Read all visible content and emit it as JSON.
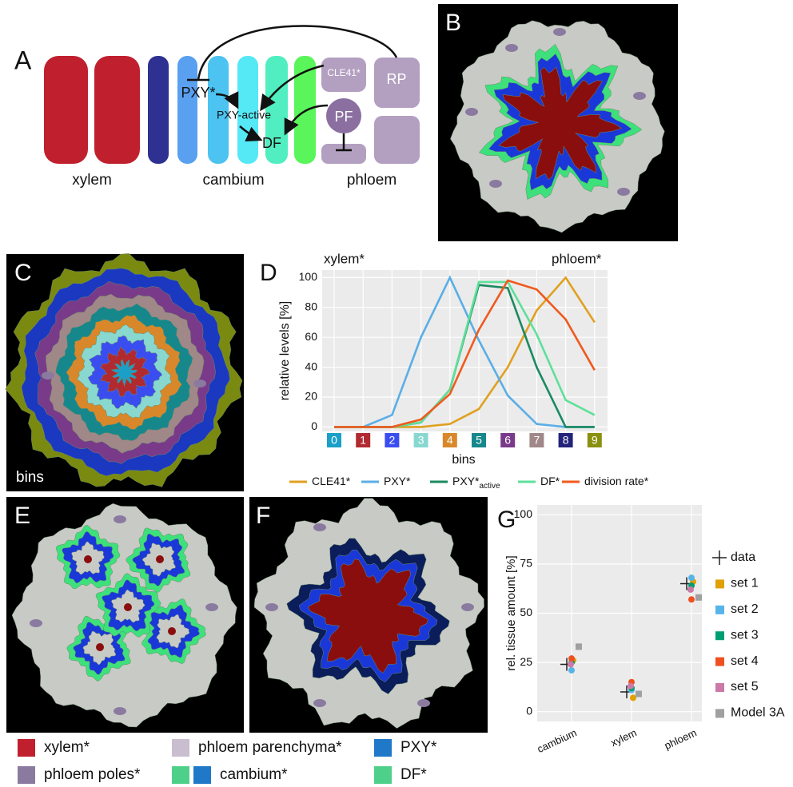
{
  "panel_labels": [
    "A",
    "B",
    "C",
    "D",
    "E",
    "F",
    "G"
  ],
  "panel_a": {
    "groups": [
      "xylem",
      "cambium",
      "phloem"
    ],
    "nodes": [
      "CLE41*",
      "RP",
      "PXY*",
      "PXY-active",
      "PF",
      "DF"
    ]
  },
  "panel_c": {
    "label": "bins"
  },
  "chart_data": [
    {
      "type": "line",
      "annotations": [
        "xylem*",
        "phloem*"
      ],
      "y_label": "relative levels [%]",
      "x_label": "bins",
      "categories": [
        "0",
        "1",
        "2",
        "3",
        "4",
        "5",
        "6",
        "7",
        "8",
        "9"
      ],
      "category_colors": [
        "#1aa0c8",
        "#b02a30",
        "#3a4ef0",
        "#88d8d0",
        "#d8882a",
        "#16888c",
        "#7a3a8a",
        "#a08888",
        "#23237a",
        "#8a9010"
      ],
      "ylim": [
        -3,
        105
      ],
      "yticks": [
        0,
        20,
        40,
        60,
        80,
        100
      ],
      "grid": true,
      "series": [
        {
          "name": "CLE41*",
          "color": "#e0a020",
          "values": [
            0,
            0,
            0,
            0,
            2,
            12,
            40,
            78,
            100,
            70
          ]
        },
        {
          "name": "PXY*",
          "color": "#5aaee6",
          "values": [
            0,
            0,
            8,
            60,
            100,
            58,
            21,
            2,
            0,
            0
          ]
        },
        {
          "name": "PXY*",
          "name_subscript": "active",
          "color": "#1a8a60",
          "values": [
            0,
            0,
            0,
            3,
            25,
            95,
            93,
            40,
            0,
            0
          ]
        },
        {
          "name": "DF*",
          "color": "#5ee09a",
          "values": [
            0,
            0,
            0,
            3,
            25,
            97,
            97,
            62,
            18,
            8
          ]
        },
        {
          "name": "division rate*",
          "color": "#f05a1e",
          "values": [
            0,
            0,
            0,
            5,
            22,
            65,
            98,
            92,
            72,
            38
          ]
        }
      ]
    },
    {
      "type": "scatter",
      "y_label": "rel. tissue amount [%]",
      "categories": [
        "cambium",
        "xylem",
        "phloem"
      ],
      "ylim": [
        -5,
        105
      ],
      "yticks": [
        0,
        25,
        50,
        75,
        100
      ],
      "grid": true,
      "series": [
        {
          "name": "data",
          "marker": "plus",
          "color": "#222222",
          "values": [
            24,
            10,
            65
          ]
        },
        {
          "name": "set 1",
          "marker": "circle",
          "color": "#e0a000",
          "values": [
            26,
            7,
            66
          ]
        },
        {
          "name": "set 2",
          "marker": "circle",
          "color": "#56b4e9",
          "values": [
            21,
            11,
            68
          ]
        },
        {
          "name": "set 3",
          "marker": "circle",
          "color": "#009e73",
          "values": [
            25,
            12,
            64
          ]
        },
        {
          "name": "set 4",
          "marker": "circle",
          "color": "#f05020",
          "values": [
            27,
            15,
            57
          ]
        },
        {
          "name": "set 5",
          "marker": "circle",
          "color": "#cc79a7",
          "values": [
            24,
            13,
            62
          ]
        },
        {
          "name": "Model 3A",
          "marker": "square",
          "color": "#a0a0a0",
          "values": [
            33,
            9,
            58
          ]
        }
      ]
    }
  ],
  "legend": [
    {
      "name": "xylem*",
      "colors": [
        "#c0202e"
      ]
    },
    {
      "name": "phloem parenchyma*",
      "colors": [
        "#c9bdd0"
      ]
    },
    {
      "name": "PXY*",
      "colors": [
        "#1f78c8"
      ]
    },
    {
      "name": "phloem poles*",
      "colors": [
        "#8b7aa0"
      ]
    },
    {
      "name": "cambium*",
      "colors": [
        "#4fd08a",
        "#1f78c8"
      ]
    },
    {
      "name": "DF*",
      "colors": [
        "#4fd08a"
      ]
    }
  ]
}
